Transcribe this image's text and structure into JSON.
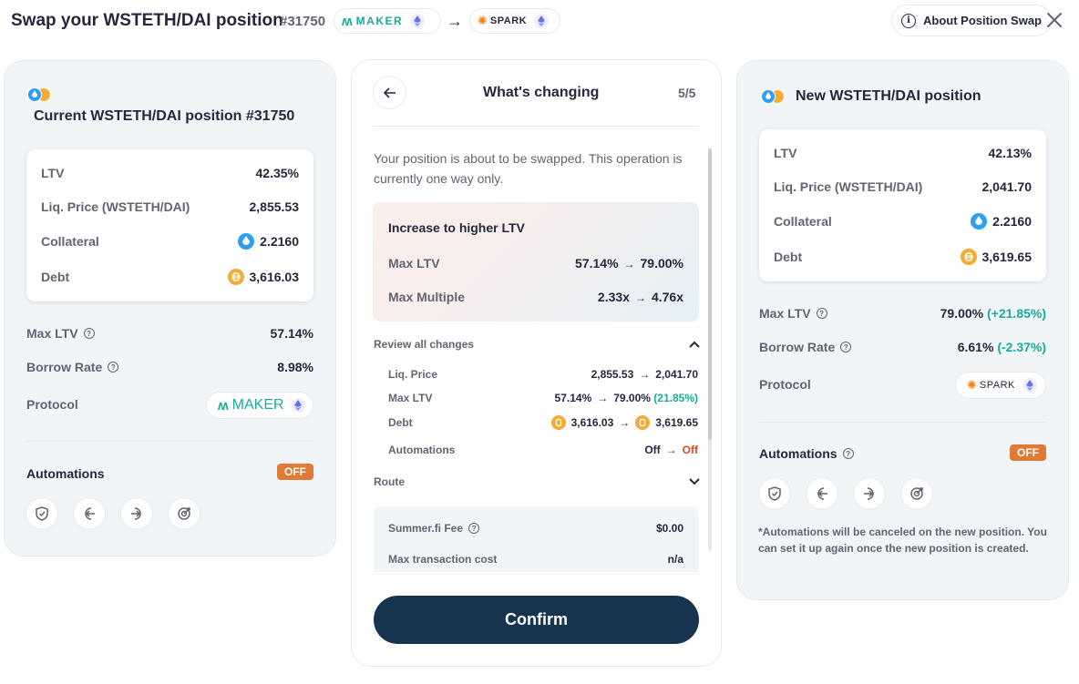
{
  "header": {
    "title": "Swap your WSTETH/DAI position",
    "position_id": "#31750",
    "from_protocol": "MAKER",
    "to_protocol": "SPARK",
    "about_label": "About Position Swap"
  },
  "current": {
    "title": "Current WSTETH/DAI position #31750",
    "ltv_label": "LTV",
    "ltv": "42.35%",
    "liq_label": "Liq. Price (WSTETH/DAI)",
    "liq": "2,855.53",
    "collateral_label": "Collateral",
    "collateral": "2.2160",
    "debt_label": "Debt",
    "debt": "3,616.03",
    "max_ltv_label": "Max LTV",
    "max_ltv": "57.14%",
    "borrow_label": "Borrow Rate",
    "borrow": "8.98%",
    "protocol_label": "Protocol",
    "protocol": "MAKER",
    "automations_label": "Automations",
    "automations_status": "OFF"
  },
  "center": {
    "title": "What's changing",
    "step": "5/5",
    "intro": "Your position is about to be swapped. This operation is currently one way only.",
    "highlight": {
      "title": "Increase to higher LTV",
      "rows": [
        {
          "label": "Max LTV",
          "from": "57.14%",
          "to": "79.00%"
        },
        {
          "label": "Max Multiple",
          "from": "2.33x",
          "to": "4.76x"
        }
      ]
    },
    "review_label": "Review all changes",
    "changes": {
      "liq_label": "Liq. Price",
      "liq_from": "2,855.53",
      "liq_to": "2,041.70",
      "maxltv_label": "Max LTV",
      "maxltv_from": "57.14%",
      "maxltv_to": "79.00%",
      "maxltv_delta": "(21.85%)",
      "debt_label": "Debt",
      "debt_from": "3,616.03",
      "debt_to": "3,619.65",
      "auto_label": "Automations",
      "auto_from": "Off",
      "auto_to": "Off"
    },
    "route_label": "Route",
    "fee_label": "Summer.fi Fee",
    "fee": "$0.00",
    "tx_label": "Max transaction cost",
    "tx": "n/a",
    "confirm_label": "Confirm",
    "arrow": "→"
  },
  "new": {
    "title": "New WSTETH/DAI position",
    "ltv_label": "LTV",
    "ltv": "42.13%",
    "liq_label": "Liq. Price (WSTETH/DAI)",
    "liq": "2,041.70",
    "collateral_label": "Collateral",
    "collateral": "2.2160",
    "debt_label": "Debt",
    "debt": "3,619.65",
    "max_ltv_label": "Max LTV",
    "max_ltv": "79.00%",
    "max_ltv_delta": "(+21.85%)",
    "borrow_label": "Borrow Rate",
    "borrow": "6.61%",
    "borrow_delta": "(-2.37%)",
    "protocol_label": "Protocol",
    "protocol": "SPARK",
    "automations_label": "Automations",
    "automations_status": "OFF",
    "footnote": "*Automations will be canceled on the new position. You can set it up again once the new position is created."
  },
  "colors": {
    "accent": "#17344f",
    "green": "#1aab9b",
    "red": "#d94a1e",
    "badge": "#e07a35"
  },
  "icons": [
    "maker-logo-icon",
    "spark-logo-icon",
    "eth-icon",
    "info-icon",
    "close-icon",
    "wsteth-icon",
    "dai-icon",
    "help-icon",
    "stop-loss-icon",
    "auto-buy-icon",
    "auto-sell-icon",
    "take-profit-icon",
    "back-arrow-icon",
    "chevron-up-icon",
    "chevron-down-icon"
  ]
}
